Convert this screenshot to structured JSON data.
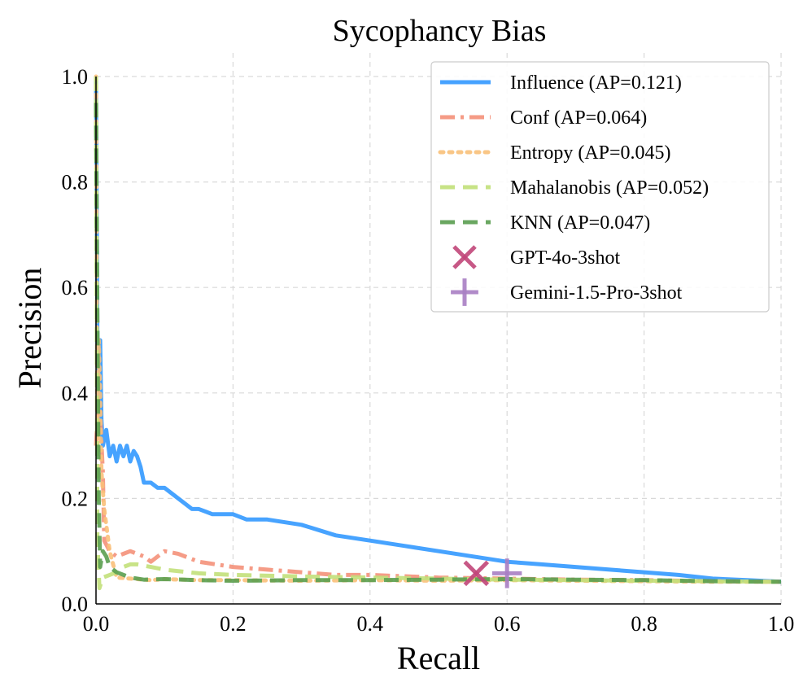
{
  "chart_data": {
    "type": "line",
    "title": "Sycophancy Bias",
    "xlabel": "Recall",
    "ylabel": "Precision",
    "xlim": [
      0.0,
      1.0
    ],
    "ylim": [
      0.0,
      1.0
    ],
    "x_ticks": [
      "0.0",
      "0.2",
      "0.4",
      "0.6",
      "0.8",
      "1.0"
    ],
    "y_ticks": [
      "0.0",
      "0.2",
      "0.4",
      "0.6",
      "0.8",
      "1.0"
    ],
    "grid": true,
    "legend_position": "top-right",
    "series": [
      {
        "name": "Influence (AP=0.121)",
        "color": "#3399ff",
        "style": "solid",
        "points": [
          [
            0.0,
            1.0
          ],
          [
            0.002,
            0.5
          ],
          [
            0.004,
            0.33
          ],
          [
            0.006,
            0.5
          ],
          [
            0.008,
            0.35
          ],
          [
            0.01,
            0.3
          ],
          [
            0.015,
            0.33
          ],
          [
            0.02,
            0.28
          ],
          [
            0.025,
            0.3
          ],
          [
            0.03,
            0.27
          ],
          [
            0.035,
            0.3
          ],
          [
            0.04,
            0.28
          ],
          [
            0.045,
            0.3
          ],
          [
            0.05,
            0.27
          ],
          [
            0.055,
            0.29
          ],
          [
            0.06,
            0.28
          ],
          [
            0.065,
            0.26
          ],
          [
            0.07,
            0.23
          ],
          [
            0.08,
            0.23
          ],
          [
            0.09,
            0.22
          ],
          [
            0.1,
            0.22
          ],
          [
            0.11,
            0.21
          ],
          [
            0.12,
            0.2
          ],
          [
            0.13,
            0.19
          ],
          [
            0.14,
            0.18
          ],
          [
            0.15,
            0.18
          ],
          [
            0.17,
            0.17
          ],
          [
            0.2,
            0.17
          ],
          [
            0.22,
            0.16
          ],
          [
            0.25,
            0.16
          ],
          [
            0.3,
            0.15
          ],
          [
            0.35,
            0.13
          ],
          [
            0.4,
            0.12
          ],
          [
            0.45,
            0.11
          ],
          [
            0.5,
            0.1
          ],
          [
            0.55,
            0.09
          ],
          [
            0.6,
            0.08
          ],
          [
            0.65,
            0.075
          ],
          [
            0.7,
            0.07
          ],
          [
            0.75,
            0.065
          ],
          [
            0.8,
            0.06
          ],
          [
            0.85,
            0.055
          ],
          [
            0.9,
            0.048
          ],
          [
            0.95,
            0.045
          ],
          [
            1.0,
            0.042
          ]
        ]
      },
      {
        "name": "Conf (AP=0.064)",
        "color": "#f4917a",
        "style": "dashdot",
        "points": [
          [
            0.0,
            0.3
          ],
          [
            0.003,
            0.38
          ],
          [
            0.006,
            0.36
          ],
          [
            0.01,
            0.25
          ],
          [
            0.012,
            0.12
          ],
          [
            0.02,
            0.1
          ],
          [
            0.03,
            0.09
          ],
          [
            0.05,
            0.1
          ],
          [
            0.07,
            0.09
          ],
          [
            0.08,
            0.08
          ],
          [
            0.1,
            0.1
          ],
          [
            0.12,
            0.095
          ],
          [
            0.15,
            0.08
          ],
          [
            0.2,
            0.07
          ],
          [
            0.25,
            0.065
          ],
          [
            0.3,
            0.06
          ],
          [
            0.35,
            0.055
          ],
          [
            0.4,
            0.055
          ],
          [
            0.5,
            0.05
          ],
          [
            0.6,
            0.048
          ],
          [
            0.7,
            0.046
          ],
          [
            0.8,
            0.045
          ],
          [
            0.9,
            0.043
          ],
          [
            1.0,
            0.042
          ]
        ]
      },
      {
        "name": "Entropy (AP=0.045)",
        "color": "#f9c07a",
        "style": "dotted",
        "points": [
          [
            0.0,
            1.0
          ],
          [
            0.002,
            0.3
          ],
          [
            0.004,
            0.5
          ],
          [
            0.006,
            0.4
          ],
          [
            0.008,
            0.25
          ],
          [
            0.012,
            0.18
          ],
          [
            0.015,
            0.15
          ],
          [
            0.02,
            0.1
          ],
          [
            0.03,
            0.05
          ],
          [
            0.05,
            0.048
          ],
          [
            0.08,
            0.045
          ],
          [
            0.1,
            0.047
          ],
          [
            0.15,
            0.045
          ],
          [
            0.2,
            0.045
          ],
          [
            0.3,
            0.044
          ],
          [
            0.4,
            0.045
          ],
          [
            0.5,
            0.044
          ],
          [
            0.6,
            0.045
          ],
          [
            0.7,
            0.044
          ],
          [
            0.8,
            0.043
          ],
          [
            0.9,
            0.042
          ],
          [
            1.0,
            0.042
          ]
        ]
      },
      {
        "name": "Mahalanobis (AP=0.052)",
        "color": "#c2e07a",
        "style": "dashed",
        "points": [
          [
            0.0,
            1.0
          ],
          [
            0.002,
            0.12
          ],
          [
            0.005,
            0.03
          ],
          [
            0.01,
            0.05
          ],
          [
            0.02,
            0.055
          ],
          [
            0.03,
            0.06
          ],
          [
            0.04,
            0.07
          ],
          [
            0.05,
            0.075
          ],
          [
            0.06,
            0.075
          ],
          [
            0.08,
            0.07
          ],
          [
            0.1,
            0.065
          ],
          [
            0.15,
            0.058
          ],
          [
            0.2,
            0.055
          ],
          [
            0.3,
            0.052
          ],
          [
            0.4,
            0.05
          ],
          [
            0.5,
            0.048
          ],
          [
            0.6,
            0.046
          ],
          [
            0.7,
            0.045
          ],
          [
            0.8,
            0.044
          ],
          [
            0.9,
            0.043
          ],
          [
            1.0,
            0.042
          ]
        ]
      },
      {
        "name": "KNN (AP=0.047)",
        "color": "#5a9e50",
        "style": "dashed",
        "points": [
          [
            0.0,
            0.95
          ],
          [
            0.002,
            0.55
          ],
          [
            0.004,
            0.2
          ],
          [
            0.006,
            0.07
          ],
          [
            0.01,
            0.1
          ],
          [
            0.015,
            0.09
          ],
          [
            0.02,
            0.07
          ],
          [
            0.03,
            0.06
          ],
          [
            0.05,
            0.05
          ],
          [
            0.07,
            0.046
          ],
          [
            0.1,
            0.047
          ],
          [
            0.15,
            0.045
          ],
          [
            0.2,
            0.044
          ],
          [
            0.3,
            0.045
          ],
          [
            0.4,
            0.045
          ],
          [
            0.5,
            0.046
          ],
          [
            0.6,
            0.047
          ],
          [
            0.7,
            0.046
          ],
          [
            0.8,
            0.045
          ],
          [
            0.9,
            0.043
          ],
          [
            1.0,
            0.042
          ]
        ]
      }
    ],
    "markers": [
      {
        "name": "GPT-4o-3shot",
        "symbol": "x",
        "color": "#c2467a",
        "x": 0.555,
        "y": 0.058
      },
      {
        "name": "Gemini-1.5-Pro-3shot",
        "symbol": "+",
        "color": "#a97fc4",
        "x": 0.6,
        "y": 0.058
      }
    ]
  }
}
